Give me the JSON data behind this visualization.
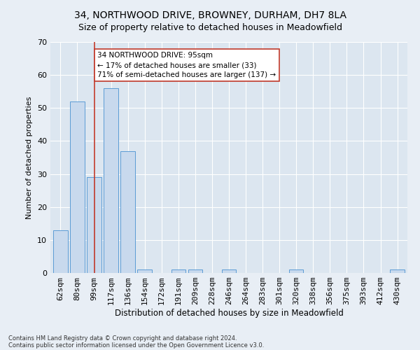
{
  "title_line1": "34, NORTHWOOD DRIVE, BROWNEY, DURHAM, DH7 8LA",
  "title_line2": "Size of property relative to detached houses in Meadowfield",
  "xlabel": "Distribution of detached houses by size in Meadowfield",
  "ylabel": "Number of detached properties",
  "categories": [
    "62sqm",
    "80sqm",
    "99sqm",
    "117sqm",
    "136sqm",
    "154sqm",
    "172sqm",
    "191sqm",
    "209sqm",
    "228sqm",
    "246sqm",
    "264sqm",
    "283sqm",
    "301sqm",
    "320sqm",
    "338sqm",
    "356sqm",
    "375sqm",
    "393sqm",
    "412sqm",
    "430sqm"
  ],
  "values": [
    13,
    52,
    29,
    56,
    37,
    1,
    0,
    1,
    1,
    0,
    1,
    0,
    0,
    0,
    1,
    0,
    0,
    0,
    0,
    0,
    1
  ],
  "bar_color": "#c8d9ed",
  "bar_edge_color": "#5b9bd5",
  "reference_line_x": 2,
  "reference_line_color": "#c0392b",
  "ylim": [
    0,
    70
  ],
  "yticks": [
    0,
    10,
    20,
    30,
    40,
    50,
    60,
    70
  ],
  "annotation_text": "34 NORTHWOOD DRIVE: 95sqm\n← 17% of detached houses are smaller (33)\n71% of semi-detached houses are larger (137) →",
  "annotation_box_color": "#ffffff",
  "annotation_box_edgecolor": "#c0392b",
  "footer_line1": "Contains HM Land Registry data © Crown copyright and database right 2024.",
  "footer_line2": "Contains public sector information licensed under the Open Government Licence v3.0.",
  "background_color": "#e8eef5",
  "plot_background_color": "#dce6f0",
  "grid_color": "#ffffff",
  "title1_fontsize": 10,
  "title2_fontsize": 9,
  "ylabel_fontsize": 8,
  "xlabel_fontsize": 8.5,
  "tick_fontsize": 8,
  "annotation_fontsize": 7.5,
  "footer_fontsize": 6
}
